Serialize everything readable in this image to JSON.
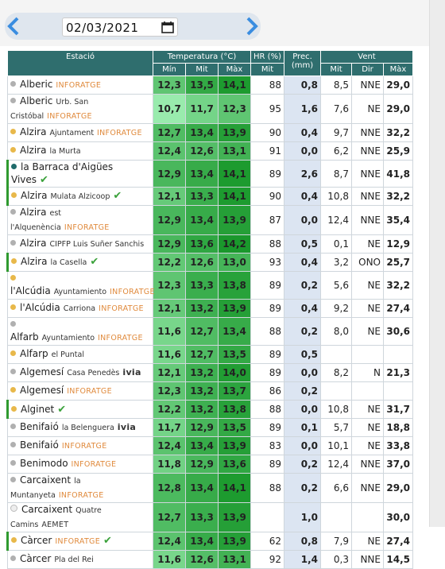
{
  "date": "02/03/2021",
  "table": {
    "headers": {
      "station": "Estació",
      "temperature": "Temperatura (°C)",
      "humidity": "HR (%)",
      "precipitation": "Prec. (mm)",
      "wind": "Vent",
      "sub": [
        "Mín",
        "Mit",
        "Màx",
        "Mit",
        "Mit",
        "Dir",
        "Màx"
      ]
    },
    "rows": [
      {
        "station": "Alberic",
        "source": "INFORATGE",
        "dot": "#b0b0b0",
        "values": [
          "12,3",
          "13,5",
          "14,1",
          "88",
          "0,8",
          "8,5",
          "NNE",
          "29,0"
        ]
      },
      {
        "station": "Alberic",
        "place": "Urb. San Cristóbal",
        "source": "INFORATGE",
        "dot": "#b0b0b0",
        "values": [
          "10,7",
          "11,7",
          "12,3",
          "95",
          "1,6",
          "7,6",
          "NE",
          "29,0"
        ]
      },
      {
        "station": "Alzira",
        "place": "Ajuntament",
        "source": "INFORATGE",
        "dot": "#e8b84a",
        "values": [
          "12,7",
          "13,4",
          "13,9",
          "90",
          "0,4",
          "9,7",
          "NNE",
          "32,2"
        ]
      },
      {
        "station": "Alzira",
        "place": "la Murta",
        "dot": "#e8b84a",
        "values": [
          "12,4",
          "12,6",
          "13,1",
          "91",
          "0,0",
          "6,2",
          "NNE",
          "25,9"
        ]
      },
      {
        "station": "la Barraca d'Aigües Vives",
        "verified": true,
        "dot": "#1f6b6b",
        "values": [
          "12,9",
          "13,4",
          "14,1",
          "89",
          "2,6",
          "8,7",
          "NNE",
          "41,8"
        ]
      },
      {
        "station": "Alzira",
        "place": "Mulata Alzicoop",
        "verified": true,
        "dot": "#e8b84a",
        "values": [
          "12,1",
          "13,3",
          "14,1",
          "90",
          "0,4",
          "10,8",
          "NNE",
          "32,2"
        ]
      },
      {
        "station": "Alzira",
        "place": "est l'Alquenència",
        "source": "INFORATGE",
        "dot": "#b0b0b0",
        "values": [
          "12,9",
          "13,4",
          "13,9",
          "87",
          "0,0",
          "12,4",
          "NNE",
          "35,4"
        ]
      },
      {
        "station": "Alzira",
        "place": "CIPFP Luis Suñer Sanchis",
        "dot": "#b0b0b0",
        "values": [
          "12,9",
          "13,6",
          "14,2",
          "88",
          "0,5",
          "0,1",
          "NE",
          "12,9"
        ]
      },
      {
        "station": "Alzira",
        "place": "la Casella",
        "verified": true,
        "dot": "#e8b84a",
        "values": [
          "12,2",
          "12,6",
          "13,0",
          "93",
          "0,4",
          "3,2",
          "ONO",
          "25,7"
        ]
      },
      {
        "station": "l'Alcúdia",
        "place": "Ayuntamiento",
        "source": "INFORATGE",
        "dot": "#e8b84a",
        "values": [
          "12,3",
          "13,3",
          "13,8",
          "89",
          "0,2",
          "5,6",
          "NE",
          "32,2"
        ]
      },
      {
        "station": "l'Alcúdia",
        "place": "Carriona",
        "source": "INFORATGE",
        "dot": "#e8b84a",
        "values": [
          "12,1",
          "13,2",
          "13,9",
          "89",
          "0,4",
          "9,2",
          "NE",
          "27,4"
        ]
      },
      {
        "station": "Alfarb",
        "place": "Ayuntamiento",
        "source": "INFORATGE",
        "dot": "#b0b0b0",
        "values": [
          "11,6",
          "12,7",
          "13,4",
          "88",
          "0,2",
          "8,0",
          "NE",
          "30,6"
        ]
      },
      {
        "station": "Alfarp",
        "place": "el Puntal",
        "dot": "#e8b84a",
        "values": [
          "11,6",
          "12,7",
          "13,5",
          "89",
          "0,5",
          null,
          null,
          null
        ]
      },
      {
        "station": "Algemesí",
        "place": "Casa Penedès",
        "source": "ivia",
        "dot": "#b0b0b0",
        "values": [
          "12,1",
          "13,2",
          "14,0",
          "89",
          "0,0",
          "8,2",
          "N",
          "21,3"
        ]
      },
      {
        "station": "Algemesí",
        "source": "INFORATGE",
        "dot": "#e8b84a",
        "values": [
          "12,3",
          "13,2",
          "13,7",
          "86",
          "0,2",
          null,
          null,
          null
        ]
      },
      {
        "station": "Alginet",
        "verified": true,
        "dot": "#e8b84a",
        "values": [
          "12,2",
          "13,2",
          "13,8",
          "88",
          "0,0",
          "10,8",
          "NE",
          "31,7"
        ]
      },
      {
        "station": "Benifaió",
        "place": "la Belenguera",
        "source": "ivia",
        "dot": "#b0b0b0",
        "values": [
          "11,7",
          "12,9",
          "13,5",
          "89",
          "0,1",
          "5,7",
          "NE",
          "18,8"
        ]
      },
      {
        "station": "Benifaió",
        "source": "INFORATGE",
        "dot": "#b0b0b0",
        "values": [
          "12,4",
          "13,4",
          "13,9",
          "83",
          "0,0",
          "10,1",
          "NE",
          "33,8"
        ]
      },
      {
        "station": "Benimodo",
        "source": "INFORATGE",
        "dot": "#b0b0b0",
        "values": [
          "11,8",
          "12,9",
          "13,6",
          "89",
          "0,2",
          "12,4",
          "NNE",
          "37,0"
        ]
      },
      {
        "station": "Carcaixent",
        "place": "la Muntanyeta",
        "source": "INFORATGE",
        "dot": "#b0b0b0",
        "values": [
          "12,8",
          "13,4",
          "14,1",
          "88",
          "0,2",
          "6,6",
          "NNE",
          "29,0"
        ]
      },
      {
        "station": "Carcaixent",
        "place": "Quatre Camins",
        "source": "AEMET",
        "dot": "#eeeeee",
        "values": [
          "12,7",
          "13,3",
          "13,9",
          null,
          "1,0",
          null,
          null,
          "30,0"
        ]
      },
      {
        "station": "Càrcer",
        "source": "INFORATGE",
        "verified": true,
        "dot": "#e8b84a",
        "values": [
          "12,4",
          "13,4",
          "13,9",
          "62",
          "0,8",
          "7,9",
          "NE",
          "27,4"
        ]
      },
      {
        "station": "Càrcer",
        "place": "Pla del Rei",
        "dot": "#b0b0b0",
        "values": [
          "11,6",
          "12,6",
          "13,1",
          "92",
          "1,4",
          "0,3",
          "NNE",
          "14,5"
        ]
      }
    ]
  }
}
